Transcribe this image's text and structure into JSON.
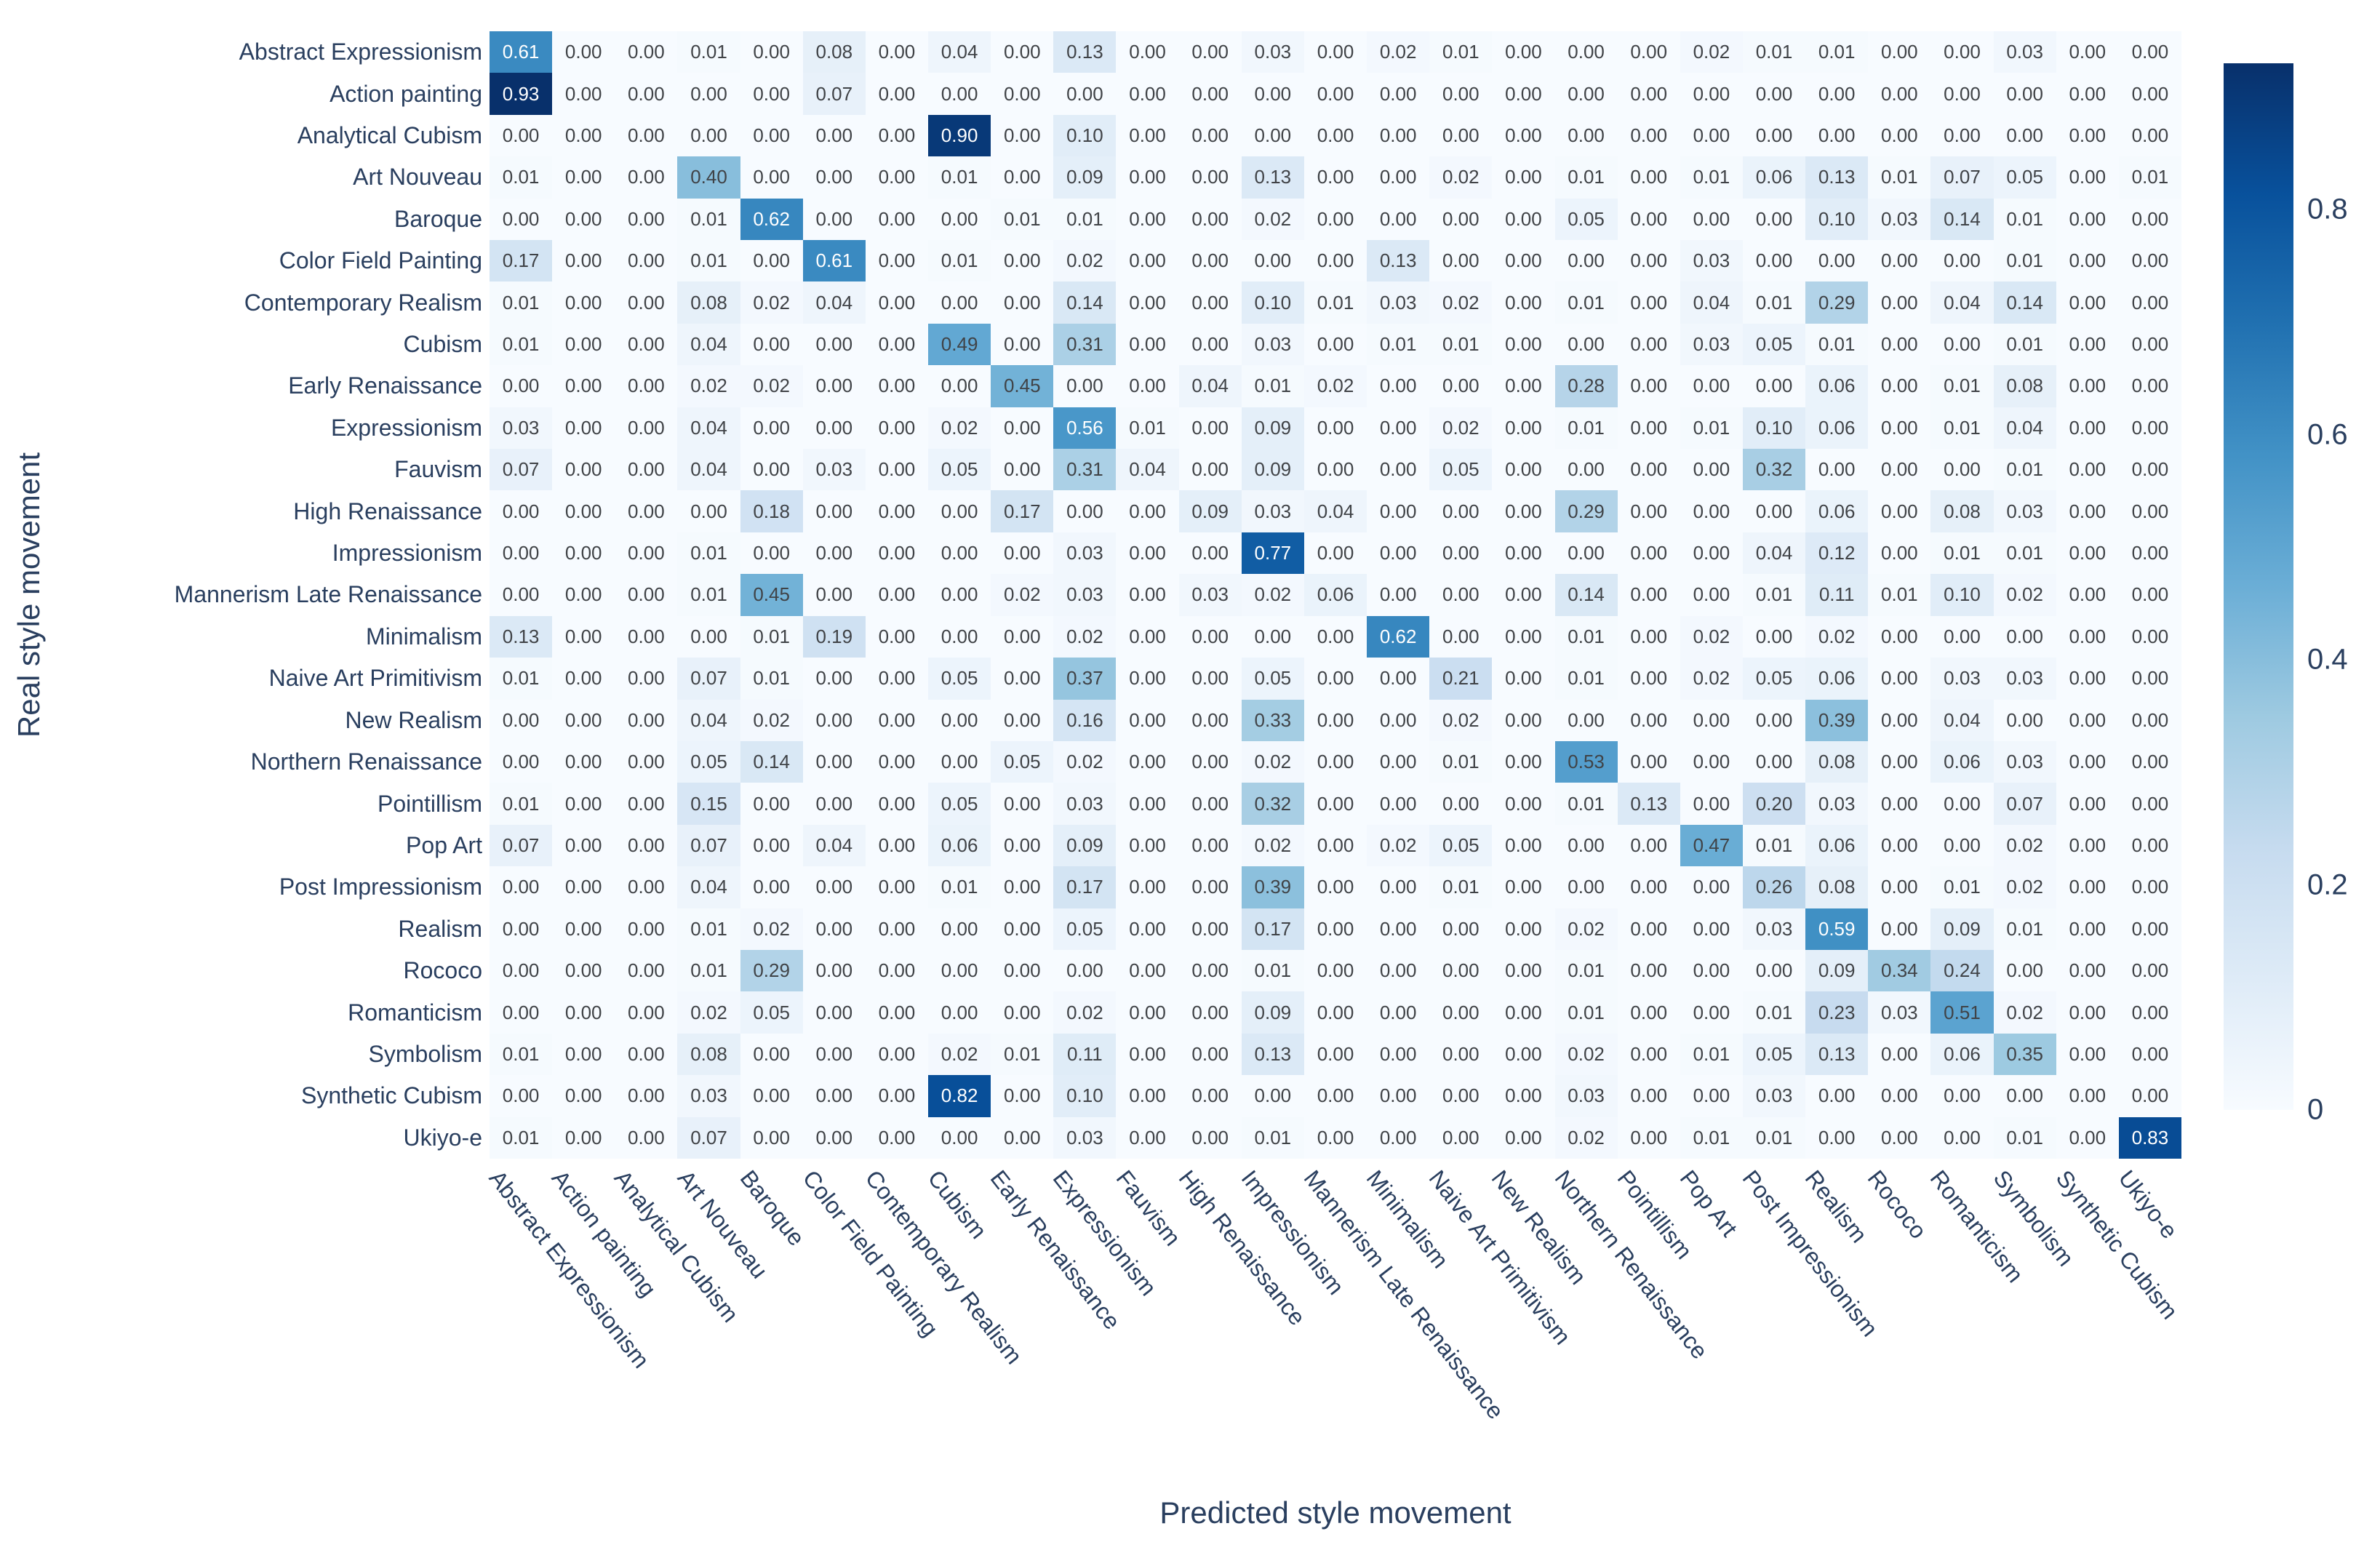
{
  "colors": {
    "background": "#ffffff",
    "label_text": "#2a3f5f",
    "cell_text_dark": "#404347",
    "cell_text_light": "#ffffff"
  },
  "chart_data": {
    "type": "heatmap",
    "xlabel": "Predicted style movement",
    "ylabel": "Real style movement",
    "categories": [
      "Abstract Expressionism",
      "Action painting",
      "Analytical Cubism",
      "Art Nouveau",
      "Baroque",
      "Color Field Painting",
      "Contemporary Realism",
      "Cubism",
      "Early Renaissance",
      "Expressionism",
      "Fauvism",
      "High Renaissance",
      "Impressionism",
      "Mannerism Late Renaissance",
      "Minimalism",
      "Naive Art Primitivism",
      "New Realism",
      "Northern Renaissance",
      "Pointillism",
      "Pop Art",
      "Post Impressionism",
      "Realism",
      "Rococo",
      "Romanticism",
      "Symbolism",
      "Synthetic Cubism",
      "Ukiyo-e"
    ],
    "matrix": [
      [
        0.61,
        0.0,
        0.0,
        0.01,
        0.0,
        0.08,
        0.0,
        0.04,
        0.0,
        0.13,
        0.0,
        0.0,
        0.03,
        0.0,
        0.02,
        0.01,
        0.0,
        0.0,
        0.0,
        0.02,
        0.01,
        0.01,
        0.0,
        0.0,
        0.03,
        0.0,
        0.0
      ],
      [
        0.93,
        0.0,
        0.0,
        0.0,
        0.0,
        0.07,
        0.0,
        0.0,
        0.0,
        0.0,
        0.0,
        0.0,
        0.0,
        0.0,
        0.0,
        0.0,
        0.0,
        0.0,
        0.0,
        0.0,
        0.0,
        0.0,
        0.0,
        0.0,
        0.0,
        0.0,
        0.0
      ],
      [
        0.0,
        0.0,
        0.0,
        0.0,
        0.0,
        0.0,
        0.0,
        0.9,
        0.0,
        0.1,
        0.0,
        0.0,
        0.0,
        0.0,
        0.0,
        0.0,
        0.0,
        0.0,
        0.0,
        0.0,
        0.0,
        0.0,
        0.0,
        0.0,
        0.0,
        0.0,
        0.0
      ],
      [
        0.01,
        0.0,
        0.0,
        0.4,
        0.0,
        0.0,
        0.0,
        0.01,
        0.0,
        0.09,
        0.0,
        0.0,
        0.13,
        0.0,
        0.0,
        0.02,
        0.0,
        0.01,
        0.0,
        0.01,
        0.06,
        0.13,
        0.01,
        0.07,
        0.05,
        0.0,
        0.01
      ],
      [
        0.0,
        0.0,
        0.0,
        0.01,
        0.62,
        0.0,
        0.0,
        0.0,
        0.01,
        0.01,
        0.0,
        0.0,
        0.02,
        0.0,
        0.0,
        0.0,
        0.0,
        0.05,
        0.0,
        0.0,
        0.0,
        0.1,
        0.03,
        0.14,
        0.01,
        0.0,
        0.0
      ],
      [
        0.17,
        0.0,
        0.0,
        0.01,
        0.0,
        0.61,
        0.0,
        0.01,
        0.0,
        0.02,
        0.0,
        0.0,
        0.0,
        0.0,
        0.13,
        0.0,
        0.0,
        0.0,
        0.0,
        0.03,
        0.0,
        0.0,
        0.0,
        0.0,
        0.01,
        0.0,
        0.0
      ],
      [
        0.01,
        0.0,
        0.0,
        0.08,
        0.02,
        0.04,
        0.0,
        0.0,
        0.0,
        0.14,
        0.0,
        0.0,
        0.1,
        0.01,
        0.03,
        0.02,
        0.0,
        0.01,
        0.0,
        0.04,
        0.01,
        0.29,
        0.0,
        0.04,
        0.14,
        0.0,
        0.0
      ],
      [
        0.01,
        0.0,
        0.0,
        0.04,
        0.0,
        0.0,
        0.0,
        0.49,
        0.0,
        0.31,
        0.0,
        0.0,
        0.03,
        0.0,
        0.01,
        0.01,
        0.0,
        0.0,
        0.0,
        0.03,
        0.05,
        0.01,
        0.0,
        0.0,
        0.01,
        0.0,
        0.0
      ],
      [
        0.0,
        0.0,
        0.0,
        0.02,
        0.02,
        0.0,
        0.0,
        0.0,
        0.45,
        0.0,
        0.0,
        0.04,
        0.01,
        0.02,
        0.0,
        0.0,
        0.0,
        0.28,
        0.0,
        0.0,
        0.0,
        0.06,
        0.0,
        0.01,
        0.08,
        0.0,
        0.0
      ],
      [
        0.03,
        0.0,
        0.0,
        0.04,
        0.0,
        0.0,
        0.0,
        0.02,
        0.0,
        0.56,
        0.01,
        0.0,
        0.09,
        0.0,
        0.0,
        0.02,
        0.0,
        0.01,
        0.0,
        0.01,
        0.1,
        0.06,
        0.0,
        0.01,
        0.04,
        0.0,
        0.0
      ],
      [
        0.07,
        0.0,
        0.0,
        0.04,
        0.0,
        0.03,
        0.0,
        0.05,
        0.0,
        0.31,
        0.04,
        0.0,
        0.09,
        0.0,
        0.0,
        0.05,
        0.0,
        0.0,
        0.0,
        0.0,
        0.32,
        0.0,
        0.0,
        0.0,
        0.01,
        0.0,
        0.0
      ],
      [
        0.0,
        0.0,
        0.0,
        0.0,
        0.18,
        0.0,
        0.0,
        0.0,
        0.17,
        0.0,
        0.0,
        0.09,
        0.03,
        0.04,
        0.0,
        0.0,
        0.0,
        0.29,
        0.0,
        0.0,
        0.0,
        0.06,
        0.0,
        0.08,
        0.03,
        0.0,
        0.0
      ],
      [
        0.0,
        0.0,
        0.0,
        0.01,
        0.0,
        0.0,
        0.0,
        0.0,
        0.0,
        0.03,
        0.0,
        0.0,
        0.77,
        0.0,
        0.0,
        0.0,
        0.0,
        0.0,
        0.0,
        0.0,
        0.04,
        0.12,
        0.0,
        0.01,
        0.01,
        0.0,
        0.0
      ],
      [
        0.0,
        0.0,
        0.0,
        0.01,
        0.45,
        0.0,
        0.0,
        0.0,
        0.02,
        0.03,
        0.0,
        0.03,
        0.02,
        0.06,
        0.0,
        0.0,
        0.0,
        0.14,
        0.0,
        0.0,
        0.01,
        0.11,
        0.01,
        0.1,
        0.02,
        0.0,
        0.0
      ],
      [
        0.13,
        0.0,
        0.0,
        0.0,
        0.01,
        0.19,
        0.0,
        0.0,
        0.0,
        0.02,
        0.0,
        0.0,
        0.0,
        0.0,
        0.62,
        0.0,
        0.0,
        0.01,
        0.0,
        0.02,
        0.0,
        0.02,
        0.0,
        0.0,
        0.0,
        0.0,
        0.0
      ],
      [
        0.01,
        0.0,
        0.0,
        0.07,
        0.01,
        0.0,
        0.0,
        0.05,
        0.0,
        0.37,
        0.0,
        0.0,
        0.05,
        0.0,
        0.0,
        0.21,
        0.0,
        0.01,
        0.0,
        0.02,
        0.05,
        0.06,
        0.0,
        0.03,
        0.03,
        0.0,
        0.0
      ],
      [
        0.0,
        0.0,
        0.0,
        0.04,
        0.02,
        0.0,
        0.0,
        0.0,
        0.0,
        0.16,
        0.0,
        0.0,
        0.33,
        0.0,
        0.0,
        0.02,
        0.0,
        0.0,
        0.0,
        0.0,
        0.0,
        0.39,
        0.0,
        0.04,
        0.0,
        0.0,
        0.0
      ],
      [
        0.0,
        0.0,
        0.0,
        0.05,
        0.14,
        0.0,
        0.0,
        0.0,
        0.05,
        0.02,
        0.0,
        0.0,
        0.02,
        0.0,
        0.0,
        0.01,
        0.0,
        0.53,
        0.0,
        0.0,
        0.0,
        0.08,
        0.0,
        0.06,
        0.03,
        0.0,
        0.0
      ],
      [
        0.01,
        0.0,
        0.0,
        0.15,
        0.0,
        0.0,
        0.0,
        0.05,
        0.0,
        0.03,
        0.0,
        0.0,
        0.32,
        0.0,
        0.0,
        0.0,
        0.0,
        0.01,
        0.13,
        0.0,
        0.2,
        0.03,
        0.0,
        0.0,
        0.07,
        0.0,
        0.0
      ],
      [
        0.07,
        0.0,
        0.0,
        0.07,
        0.0,
        0.04,
        0.0,
        0.06,
        0.0,
        0.09,
        0.0,
        0.0,
        0.02,
        0.0,
        0.02,
        0.05,
        0.0,
        0.0,
        0.0,
        0.47,
        0.01,
        0.06,
        0.0,
        0.0,
        0.02,
        0.0,
        0.0
      ],
      [
        0.0,
        0.0,
        0.0,
        0.04,
        0.0,
        0.0,
        0.0,
        0.01,
        0.0,
        0.17,
        0.0,
        0.0,
        0.39,
        0.0,
        0.0,
        0.01,
        0.0,
        0.0,
        0.0,
        0.0,
        0.26,
        0.08,
        0.0,
        0.01,
        0.02,
        0.0,
        0.0
      ],
      [
        0.0,
        0.0,
        0.0,
        0.01,
        0.02,
        0.0,
        0.0,
        0.0,
        0.0,
        0.05,
        0.0,
        0.0,
        0.17,
        0.0,
        0.0,
        0.0,
        0.0,
        0.02,
        0.0,
        0.0,
        0.03,
        0.59,
        0.0,
        0.09,
        0.01,
        0.0,
        0.0
      ],
      [
        0.0,
        0.0,
        0.0,
        0.01,
        0.29,
        0.0,
        0.0,
        0.0,
        0.0,
        0.0,
        0.0,
        0.0,
        0.01,
        0.0,
        0.0,
        0.0,
        0.0,
        0.01,
        0.0,
        0.0,
        0.0,
        0.09,
        0.34,
        0.24,
        0.0,
        0.0,
        0.0
      ],
      [
        0.0,
        0.0,
        0.0,
        0.02,
        0.05,
        0.0,
        0.0,
        0.0,
        0.0,
        0.02,
        0.0,
        0.0,
        0.09,
        0.0,
        0.0,
        0.0,
        0.0,
        0.01,
        0.0,
        0.0,
        0.01,
        0.23,
        0.03,
        0.51,
        0.02,
        0.0,
        0.0
      ],
      [
        0.01,
        0.0,
        0.0,
        0.08,
        0.0,
        0.0,
        0.0,
        0.02,
        0.01,
        0.11,
        0.0,
        0.0,
        0.13,
        0.0,
        0.0,
        0.0,
        0.0,
        0.02,
        0.0,
        0.01,
        0.05,
        0.13,
        0.0,
        0.06,
        0.35,
        0.0,
        0.0
      ],
      [
        0.0,
        0.0,
        0.0,
        0.03,
        0.0,
        0.0,
        0.0,
        0.82,
        0.0,
        0.1,
        0.0,
        0.0,
        0.0,
        0.0,
        0.0,
        0.0,
        0.0,
        0.03,
        0.0,
        0.0,
        0.03,
        0.0,
        0.0,
        0.0,
        0.0,
        0.0,
        0.0
      ],
      [
        0.01,
        0.0,
        0.0,
        0.07,
        0.0,
        0.0,
        0.0,
        0.0,
        0.0,
        0.03,
        0.0,
        0.0,
        0.01,
        0.0,
        0.0,
        0.0,
        0.0,
        0.02,
        0.0,
        0.01,
        0.01,
        0.0,
        0.0,
        0.0,
        0.01,
        0.0,
        0.83
      ]
    ],
    "colorbar": {
      "vmin": 0,
      "vmax": 0.93,
      "colormap": "Blues",
      "ticks": [
        {
          "label": "0.8",
          "value": 0.8
        },
        {
          "label": "0.6",
          "value": 0.6
        },
        {
          "label": "0.4",
          "value": 0.4
        },
        {
          "label": "0.2",
          "value": 0.2
        },
        {
          "label": "0",
          "value": 0.0
        }
      ]
    },
    "layout_hints": {
      "grid": "off",
      "legend_position": "right-colorbar",
      "x_tick_rotation_deg": 52
    }
  }
}
